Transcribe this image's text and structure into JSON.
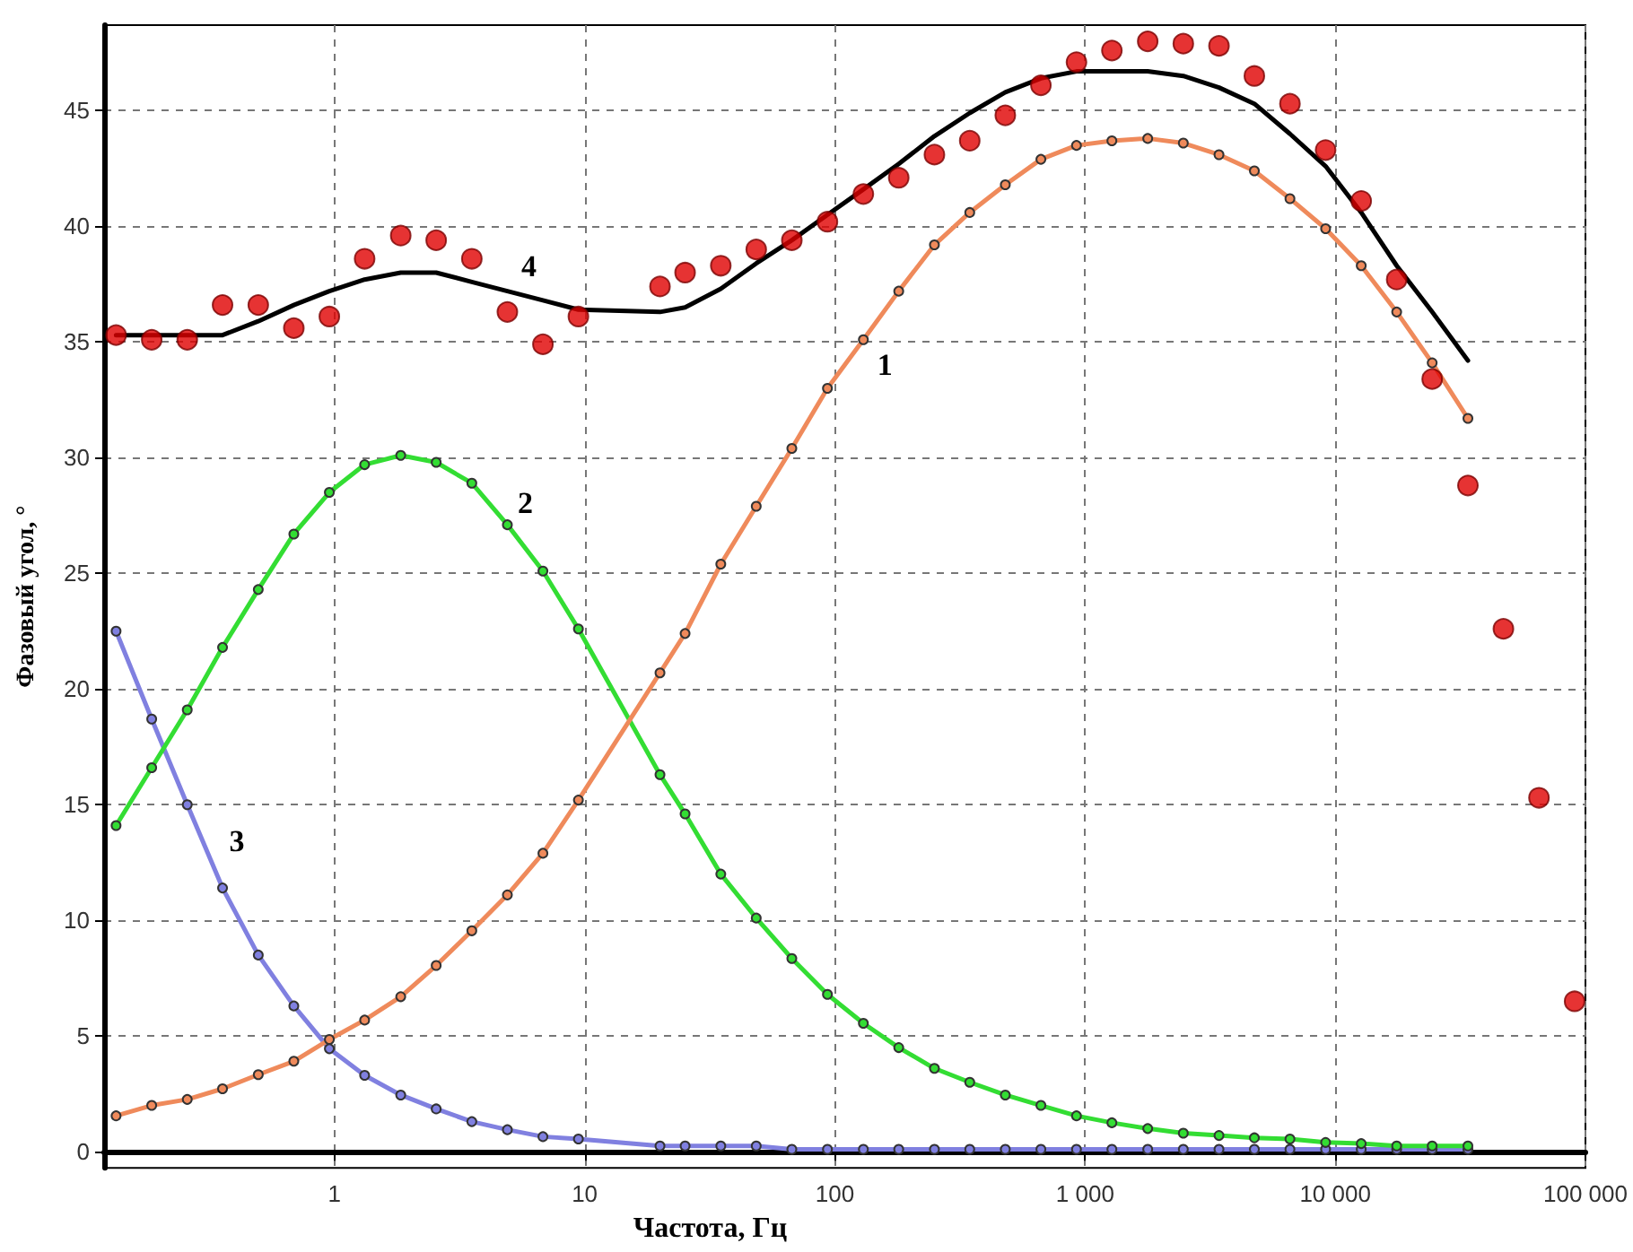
{
  "chart_data": {
    "type": "line",
    "xlabel": "Частота, Гц",
    "ylabel": "Фазовый угол, °",
    "log": "x",
    "grid": true,
    "legend": false,
    "xlim": [
      0.12,
      100000
    ],
    "xticks": [
      1,
      10,
      100,
      {
        "value": 1000,
        "label": "1 000"
      },
      {
        "value": 10000,
        "label": "10 000"
      },
      {
        "value": 100000,
        "label": "100 000"
      }
    ],
    "ylim": [
      -0.7,
      48.7
    ],
    "yticks": [
      0,
      5,
      10,
      15,
      20,
      25,
      30,
      35,
      40,
      45
    ],
    "x": [
      0.134,
      0.186,
      0.258,
      0.357,
      0.496,
      0.688,
      0.954,
      1.32,
      1.84,
      2.55,
      3.54,
      4.91,
      6.81,
      9.44,
      20.0,
      25.2,
      35.0,
      48.5,
      67.3,
      93.4,
      130,
      180,
      250,
      346,
      480,
      666,
      924,
      1280,
      1780,
      2470,
      3430,
      4750,
      6590,
      9150,
      12700,
      17600,
      24400,
      33900
    ],
    "series": [
      {
        "name": "1",
        "color": "#ef8a5b",
        "marker": "circle",
        "values": [
          1.55,
          2.0,
          2.26,
          2.72,
          3.33,
          3.91,
          4.85,
          5.69,
          6.7,
          8.05,
          9.55,
          11.1,
          12.9,
          15.2,
          20.7,
          22.4,
          25.4,
          27.9,
          30.4,
          33.0,
          35.1,
          37.2,
          39.2,
          40.6,
          41.8,
          42.9,
          43.5,
          43.7,
          43.8,
          43.6,
          43.1,
          42.4,
          41.2,
          39.9,
          38.3,
          36.3,
          34.1,
          31.7
        ]
      },
      {
        "name": "2",
        "color": "#33dd33",
        "marker": "circle",
        "values": [
          14.1,
          16.6,
          19.1,
          21.8,
          24.3,
          26.7,
          28.5,
          29.7,
          30.1,
          29.8,
          28.9,
          27.1,
          25.1,
          22.6,
          16.3,
          14.6,
          12.0,
          10.1,
          8.35,
          6.8,
          5.55,
          4.5,
          3.6,
          3.0,
          2.45,
          2.0,
          1.55,
          1.25,
          1.0,
          0.8,
          0.7,
          0.6,
          0.55,
          0.4,
          0.35,
          0.25,
          0.25,
          0.25
        ]
      },
      {
        "name": "3",
        "color": "#8080e0",
        "marker": "circle",
        "values": [
          22.5,
          18.7,
          15.0,
          11.4,
          8.5,
          6.3,
          4.45,
          3.3,
          2.45,
          1.85,
          1.3,
          0.95,
          0.65,
          0.55,
          0.25,
          0.25,
          0.25,
          0.25,
          0.1,
          0.1,
          0.1,
          0.1,
          0.1,
          0.1,
          0.1,
          0.1,
          0.1,
          0.1,
          0.1,
          0.1,
          0.1,
          0.1,
          0.1,
          0.1,
          0.1,
          0.1,
          0.1,
          0.1
        ]
      },
      {
        "name": "4",
        "color": "#000000",
        "marker": "none",
        "values": [
          35.3,
          35.3,
          35.3,
          35.3,
          35.9,
          36.6,
          37.2,
          37.7,
          38.0,
          38.0,
          37.6,
          37.2,
          36.8,
          36.4,
          36.3,
          36.5,
          37.3,
          38.4,
          39.4,
          40.5,
          41.6,
          42.7,
          43.9,
          44.9,
          45.8,
          46.4,
          46.7,
          46.7,
          46.7,
          46.5,
          46.0,
          45.3,
          44.0,
          42.6,
          40.6,
          38.3,
          36.3,
          34.2
        ]
      },
      {
        "type": "scatter",
        "color": "#e00000",
        "marker": "circle",
        "x": [
          0.134,
          0.186,
          0.258,
          0.357,
          0.496,
          0.688,
          0.954,
          1.32,
          1.84,
          2.55,
          3.54,
          4.91,
          6.81,
          9.44,
          20.0,
          25.2,
          35.0,
          48.5,
          67.3,
          93.4,
          130,
          180,
          250,
          346,
          480,
          666,
          924,
          1280,
          1780,
          2470,
          3430,
          4750,
          6590,
          9150,
          12700,
          17600,
          24400,
          33900,
          47000,
          65200,
          90500
        ],
        "values": [
          35.3,
          35.1,
          35.1,
          36.6,
          36.6,
          35.6,
          36.1,
          38.6,
          39.6,
          39.4,
          38.6,
          36.3,
          34.9,
          36.1,
          37.4,
          38.0,
          38.3,
          39.0,
          39.4,
          40.2,
          41.4,
          42.1,
          43.1,
          43.7,
          44.8,
          46.1,
          47.1,
          47.6,
          48.0,
          47.9,
          47.8,
          46.5,
          45.3,
          43.3,
          41.1,
          37.7,
          33.4,
          28.8,
          22.6,
          15.3,
          6.5
        ]
      }
    ]
  }
}
